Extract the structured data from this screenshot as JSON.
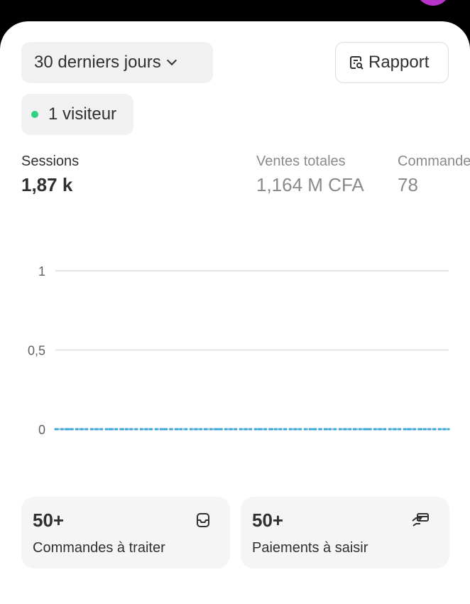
{
  "header": {
    "avatar_color": "#b833c9"
  },
  "toolbar": {
    "range_label": "30 derniers jours",
    "range_icon": "chevron-down-icon",
    "report_label": "Rapport",
    "report_icon": "report-search-icon"
  },
  "live": {
    "label": "1 visiteur",
    "status_color": "#2fd184"
  },
  "metrics": [
    {
      "label": "Sessions",
      "value": "1,87 k",
      "active": true
    },
    {
      "label": "Ventes totales",
      "value": "1,164 M CFA",
      "active": false
    },
    {
      "label": "Commandes",
      "value": "78",
      "active": false
    }
  ],
  "chart_data": {
    "type": "line",
    "y_ticks": [
      "1",
      "0,5",
      "0"
    ],
    "ylim": [
      0,
      1
    ],
    "grid": true,
    "line_color": "#3aa6d8",
    "series": [
      {
        "values": [
          0,
          0,
          0,
          0,
          0,
          0,
          0,
          0,
          0,
          0,
          0,
          0,
          0,
          0,
          0,
          0,
          0,
          0,
          0,
          0,
          0,
          0,
          0,
          0,
          0,
          0,
          0,
          0,
          0,
          0
        ]
      },
      {
        "values": [
          0,
          0,
          0,
          0,
          0,
          0,
          0,
          0,
          0,
          0,
          0,
          0,
          0,
          0,
          0,
          0,
          0,
          0,
          0,
          0,
          0,
          0,
          0,
          0,
          0,
          0,
          0,
          0,
          0,
          0
        ]
      }
    ]
  },
  "tiles": [
    {
      "count": "50+",
      "label": "Commandes à traiter",
      "icon": "inbox-icon"
    },
    {
      "count": "50+",
      "label": "Paiements à saisir",
      "icon": "hand-card-icon"
    }
  ]
}
